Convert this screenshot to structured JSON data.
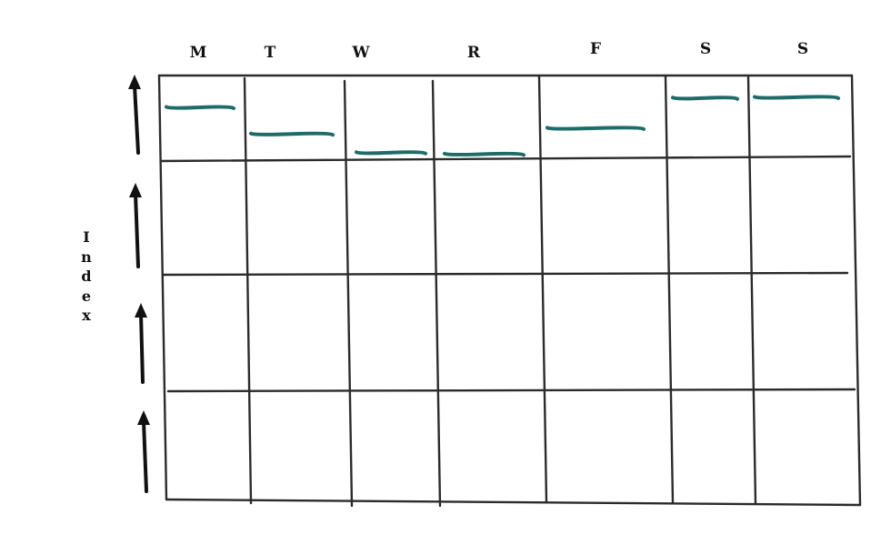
{
  "columns": [
    "M",
    "T",
    "W",
    "R",
    "F",
    "S",
    "S"
  ],
  "axis_label": "Index",
  "rows": 4,
  "row_direction": "up",
  "ink_color": "#2b2b2b",
  "marker_color": "#1f6b68",
  "arrow_color": "#111111",
  "marker_levels": [
    0.69,
    0.32,
    0.06,
    0.04,
    0.4,
    0.82,
    0.83
  ]
}
